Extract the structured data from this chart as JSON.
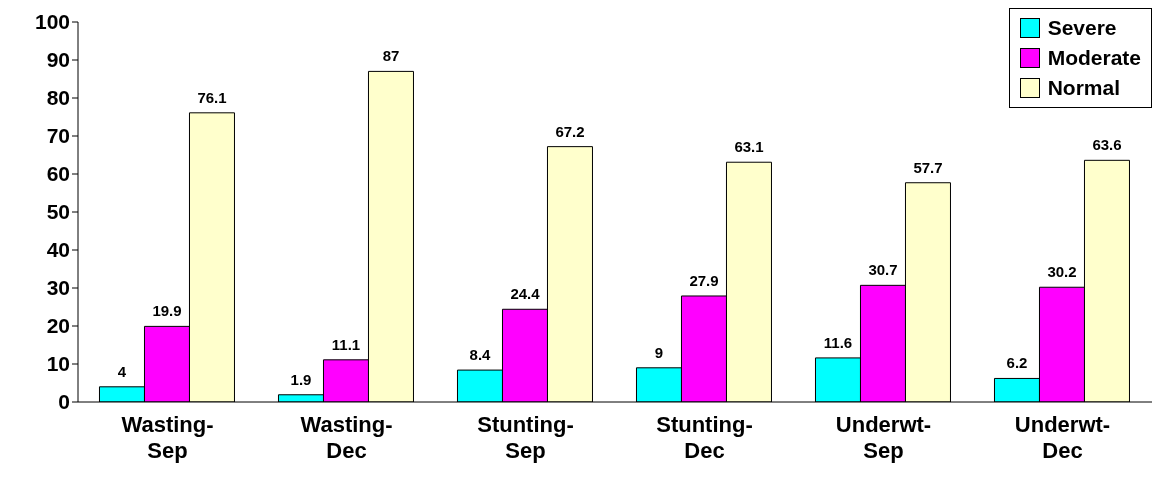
{
  "chart_data": {
    "type": "bar",
    "categories": [
      "Wasting-Sep",
      "Wasting-Dec",
      "Stunting-Sep",
      "Stunting-Dec",
      "Underwt-Sep",
      "Underwt-Dec"
    ],
    "series": [
      {
        "name": "Severe",
        "color": "#00ffff",
        "values": [
          4,
          1.9,
          8.4,
          9,
          11.6,
          6.2
        ]
      },
      {
        "name": "Moderate",
        "color": "#ff00ff",
        "values": [
          19.9,
          11.1,
          24.4,
          27.9,
          30.7,
          30.2
        ]
      },
      {
        "name": "Normal",
        "color": "#ffffcc",
        "values": [
          76.1,
          87,
          67.2,
          63.1,
          57.7,
          63.6
        ]
      }
    ],
    "ylim": [
      0,
      100
    ],
    "yticks": [
      0,
      10,
      20,
      30,
      40,
      50,
      60,
      70,
      80,
      90,
      100
    ],
    "grid": false,
    "legend": "top right",
    "data_labels": true
  }
}
